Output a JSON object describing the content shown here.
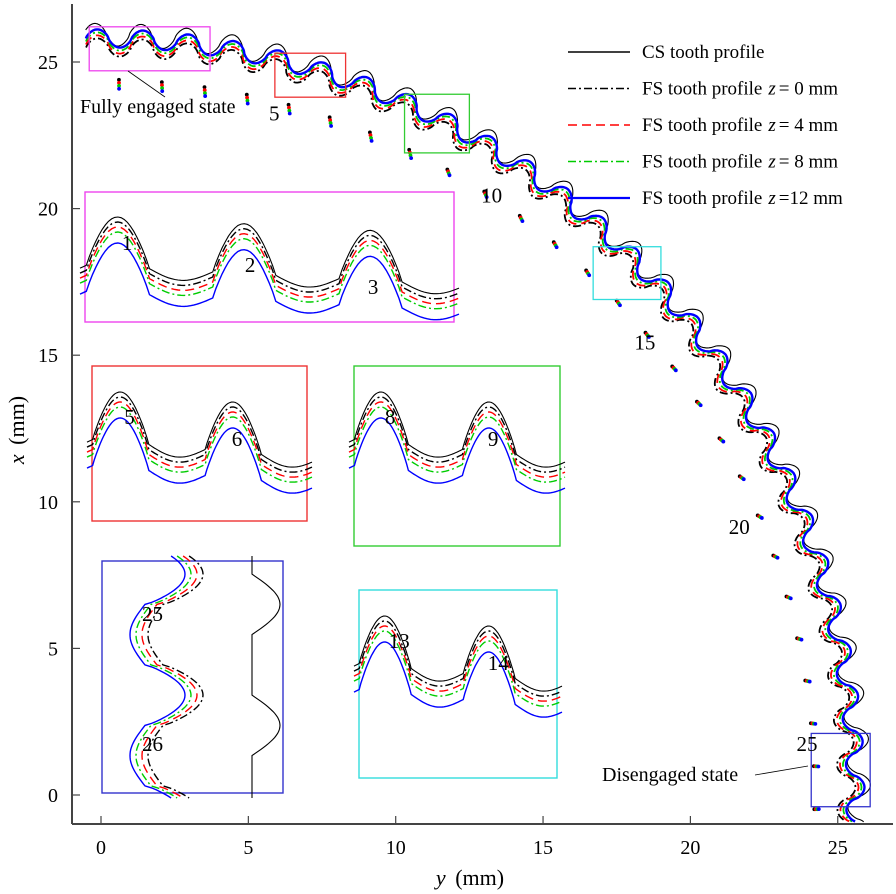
{
  "chart_data": {
    "type": "line",
    "title": "",
    "xlabel": "y (mm)",
    "ylabel": "x (mm)",
    "xlabel_var": "y",
    "ylabel_var": "x",
    "axis_unit": "(mm)",
    "xlim": [
      -1,
      26.5
    ],
    "ylim": [
      -1,
      27
    ],
    "xticks": [
      0,
      5,
      10,
      15,
      20,
      25
    ],
    "yticks": [
      0,
      5,
      10,
      15,
      20,
      25
    ],
    "grid": false,
    "legend_position": "top-right",
    "tooth_count": 27,
    "series": [
      {
        "name": "CS tooth profile",
        "prefix": "CS tooth profile",
        "z": "",
        "color": "#000000",
        "style": "solid",
        "offset_mm": 0.0
      },
      {
        "name": "FS tooth profile z = 0 mm",
        "prefix": "FS tooth profile",
        "z": "= 0 mm",
        "color": "#000000",
        "style": "dashdot",
        "offset_mm": 0.35
      },
      {
        "name": "FS tooth profile z = 4 mm",
        "prefix": "FS tooth profile",
        "z": "= 4 mm",
        "color": "#ff0000",
        "style": "dashed",
        "offset_mm": 0.25
      },
      {
        "name": "FS tooth profile z = 8 mm",
        "prefix": "FS tooth profile",
        "z": "= 8 mm",
        "color": "#00cc00",
        "style": "dashdot",
        "offset_mm": 0.15
      },
      {
        "name": "FS tooth profile z =12 mm",
        "prefix": "FS tooth profile",
        "z": "=12 mm",
        "color": "#0000ff",
        "style": "solid",
        "offset_mm": 0.05
      }
    ],
    "tooth_labels": [
      {
        "text": "5",
        "y": 5.7,
        "x": 23.0
      },
      {
        "text": "10",
        "y": 12.9,
        "x": 20.2
      },
      {
        "text": "15",
        "y": 18.1,
        "x": 15.2
      },
      {
        "text": "20",
        "y": 21.3,
        "x": 8.9
      },
      {
        "text": "25",
        "y": 23.6,
        "x": 1.5
      }
    ],
    "annotations": [
      {
        "text": "Fully engaged state",
        "y": 2.0,
        "x": 23.0
      },
      {
        "text": "Disengaged state",
        "y": 19.0,
        "x": -0.3
      }
    ],
    "zoom_regions": [
      {
        "name": "teeth-1-3",
        "color": "#ee44ee",
        "labels": [
          "1",
          "2",
          "3"
        ],
        "source": {
          "y0": -0.4,
          "y1": 3.7,
          "x0": 24.7,
          "x1": 26.2
        }
      },
      {
        "name": "teeth-5-6",
        "color": "#ee3333",
        "labels": [
          "5",
          "6"
        ],
        "source": {
          "y0": 5.9,
          "y1": 8.3,
          "x0": 23.8,
          "x1": 25.3
        }
      },
      {
        "name": "teeth-8-9",
        "color": "#33cc33",
        "labels": [
          "8",
          "9"
        ],
        "source": {
          "y0": 10.3,
          "y1": 12.5,
          "x0": 21.9,
          "x1": 23.9
        }
      },
      {
        "name": "teeth-13-14",
        "color": "#33dddd",
        "labels": [
          "13",
          "14"
        ],
        "source": {
          "y0": 16.7,
          "y1": 19.0,
          "x0": 16.9,
          "x1": 18.7
        }
      },
      {
        "name": "teeth-25-26",
        "color": "#3333cc",
        "labels": [
          "25",
          "26"
        ],
        "source": {
          "y0": 24.1,
          "y1": 26.1,
          "x0": -0.4,
          "x1": 2.1
        }
      }
    ]
  }
}
